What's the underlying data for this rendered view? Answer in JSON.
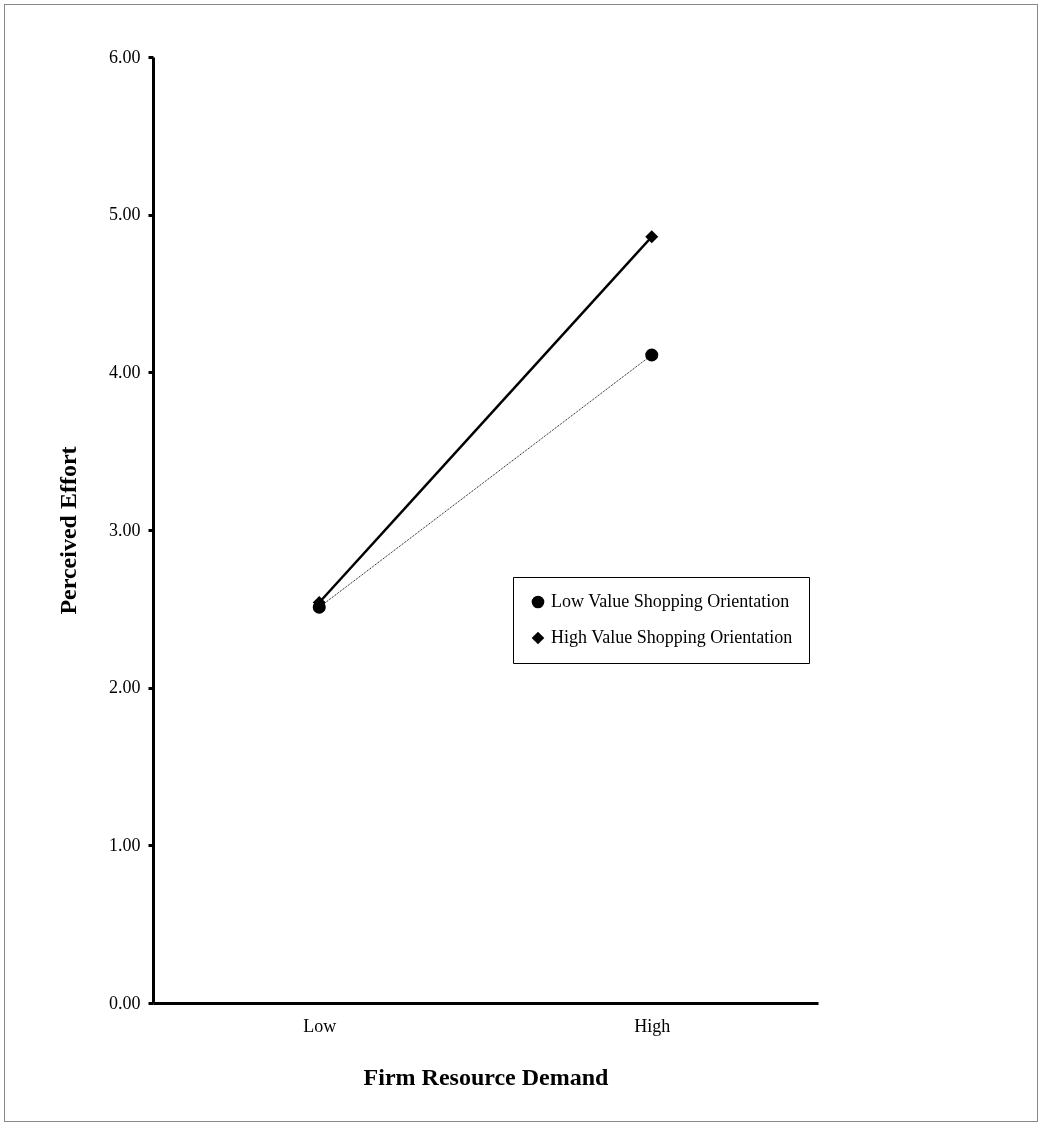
{
  "chart_data": {
    "type": "line",
    "xlabel": "Firm Resource Demand",
    "ylabel": "Perceived Effort",
    "categories": [
      "Low",
      "High"
    ],
    "series": [
      {
        "name": "Low Value Shopping Orientation",
        "color": "#000000",
        "values": [
          2.51,
          4.11
        ],
        "marker": "circle",
        "line_style": "dotted"
      },
      {
        "name": "High Value Shopping Orientation",
        "color": "#000000",
        "values": [
          2.54,
          4.86
        ],
        "marker": "diamond",
        "line_style": "solid"
      }
    ],
    "ylim": [
      0,
      6
    ],
    "yticks": [
      {
        "value": 0,
        "label": "0.00"
      },
      {
        "value": 1,
        "label": "1.00"
      },
      {
        "value": 2,
        "label": "2.00"
      },
      {
        "value": 3,
        "label": "3.00"
      },
      {
        "value": 4,
        "label": "4.00"
      },
      {
        "value": 5,
        "label": "5.00"
      },
      {
        "value": 6,
        "label": "6.00"
      }
    ],
    "grid": false,
    "legend": "right"
  }
}
